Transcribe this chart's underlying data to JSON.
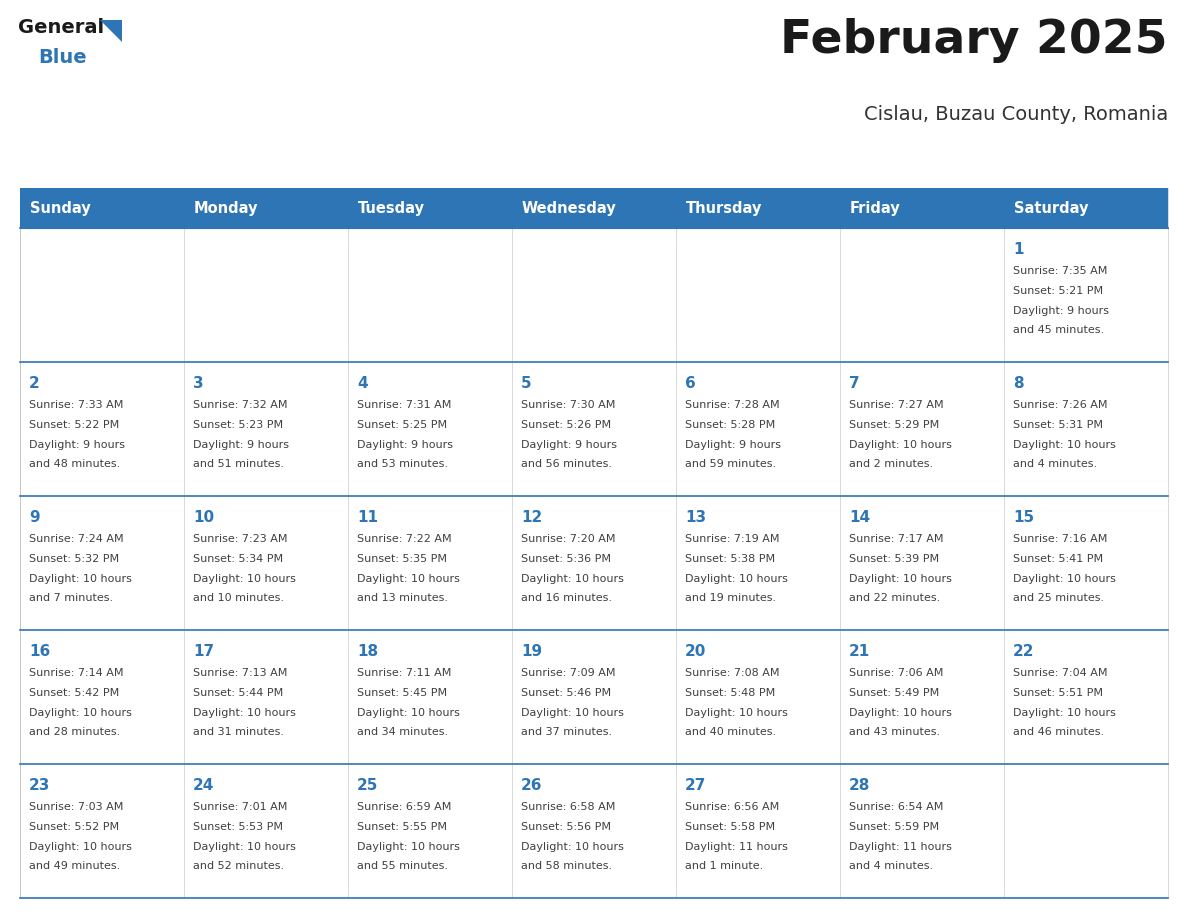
{
  "title": "February 2025",
  "subtitle": "Cislau, Buzau County, Romania",
  "header_bg": "#2E75B6",
  "header_text_color": "#FFFFFF",
  "cell_bg": "#FFFFFF",
  "day_number_color": "#2E75B6",
  "text_color": "#404040",
  "line_color": "#2E75B6",
  "days_of_week": [
    "Sunday",
    "Monday",
    "Tuesday",
    "Wednesday",
    "Thursday",
    "Friday",
    "Saturday"
  ],
  "calendar_data": [
    [
      null,
      null,
      null,
      null,
      null,
      null,
      {
        "day": "1",
        "sunrise": "7:35 AM",
        "sunset": "5:21 PM",
        "dl1": "Daylight: 9 hours",
        "dl2": "and 45 minutes."
      }
    ],
    [
      {
        "day": "2",
        "sunrise": "7:33 AM",
        "sunset": "5:22 PM",
        "dl1": "Daylight: 9 hours",
        "dl2": "and 48 minutes."
      },
      {
        "day": "3",
        "sunrise": "7:32 AM",
        "sunset": "5:23 PM",
        "dl1": "Daylight: 9 hours",
        "dl2": "and 51 minutes."
      },
      {
        "day": "4",
        "sunrise": "7:31 AM",
        "sunset": "5:25 PM",
        "dl1": "Daylight: 9 hours",
        "dl2": "and 53 minutes."
      },
      {
        "day": "5",
        "sunrise": "7:30 AM",
        "sunset": "5:26 PM",
        "dl1": "Daylight: 9 hours",
        "dl2": "and 56 minutes."
      },
      {
        "day": "6",
        "sunrise": "7:28 AM",
        "sunset": "5:28 PM",
        "dl1": "Daylight: 9 hours",
        "dl2": "and 59 minutes."
      },
      {
        "day": "7",
        "sunrise": "7:27 AM",
        "sunset": "5:29 PM",
        "dl1": "Daylight: 10 hours",
        "dl2": "and 2 minutes."
      },
      {
        "day": "8",
        "sunrise": "7:26 AM",
        "sunset": "5:31 PM",
        "dl1": "Daylight: 10 hours",
        "dl2": "and 4 minutes."
      }
    ],
    [
      {
        "day": "9",
        "sunrise": "7:24 AM",
        "sunset": "5:32 PM",
        "dl1": "Daylight: 10 hours",
        "dl2": "and 7 minutes."
      },
      {
        "day": "10",
        "sunrise": "7:23 AM",
        "sunset": "5:34 PM",
        "dl1": "Daylight: 10 hours",
        "dl2": "and 10 minutes."
      },
      {
        "day": "11",
        "sunrise": "7:22 AM",
        "sunset": "5:35 PM",
        "dl1": "Daylight: 10 hours",
        "dl2": "and 13 minutes."
      },
      {
        "day": "12",
        "sunrise": "7:20 AM",
        "sunset": "5:36 PM",
        "dl1": "Daylight: 10 hours",
        "dl2": "and 16 minutes."
      },
      {
        "day": "13",
        "sunrise": "7:19 AM",
        "sunset": "5:38 PM",
        "dl1": "Daylight: 10 hours",
        "dl2": "and 19 minutes."
      },
      {
        "day": "14",
        "sunrise": "7:17 AM",
        "sunset": "5:39 PM",
        "dl1": "Daylight: 10 hours",
        "dl2": "and 22 minutes."
      },
      {
        "day": "15",
        "sunrise": "7:16 AM",
        "sunset": "5:41 PM",
        "dl1": "Daylight: 10 hours",
        "dl2": "and 25 minutes."
      }
    ],
    [
      {
        "day": "16",
        "sunrise": "7:14 AM",
        "sunset": "5:42 PM",
        "dl1": "Daylight: 10 hours",
        "dl2": "and 28 minutes."
      },
      {
        "day": "17",
        "sunrise": "7:13 AM",
        "sunset": "5:44 PM",
        "dl1": "Daylight: 10 hours",
        "dl2": "and 31 minutes."
      },
      {
        "day": "18",
        "sunrise": "7:11 AM",
        "sunset": "5:45 PM",
        "dl1": "Daylight: 10 hours",
        "dl2": "and 34 minutes."
      },
      {
        "day": "19",
        "sunrise": "7:09 AM",
        "sunset": "5:46 PM",
        "dl1": "Daylight: 10 hours",
        "dl2": "and 37 minutes."
      },
      {
        "day": "20",
        "sunrise": "7:08 AM",
        "sunset": "5:48 PM",
        "dl1": "Daylight: 10 hours",
        "dl2": "and 40 minutes."
      },
      {
        "day": "21",
        "sunrise": "7:06 AM",
        "sunset": "5:49 PM",
        "dl1": "Daylight: 10 hours",
        "dl2": "and 43 minutes."
      },
      {
        "day": "22",
        "sunrise": "7:04 AM",
        "sunset": "5:51 PM",
        "dl1": "Daylight: 10 hours",
        "dl2": "and 46 minutes."
      }
    ],
    [
      {
        "day": "23",
        "sunrise": "7:03 AM",
        "sunset": "5:52 PM",
        "dl1": "Daylight: 10 hours",
        "dl2": "and 49 minutes."
      },
      {
        "day": "24",
        "sunrise": "7:01 AM",
        "sunset": "5:53 PM",
        "dl1": "Daylight: 10 hours",
        "dl2": "and 52 minutes."
      },
      {
        "day": "25",
        "sunrise": "6:59 AM",
        "sunset": "5:55 PM",
        "dl1": "Daylight: 10 hours",
        "dl2": "and 55 minutes."
      },
      {
        "day": "26",
        "sunrise": "6:58 AM",
        "sunset": "5:56 PM",
        "dl1": "Daylight: 10 hours",
        "dl2": "and 58 minutes."
      },
      {
        "day": "27",
        "sunrise": "6:56 AM",
        "sunset": "5:58 PM",
        "dl1": "Daylight: 11 hours",
        "dl2": "and 1 minute."
      },
      {
        "day": "28",
        "sunrise": "6:54 AM",
        "sunset": "5:59 PM",
        "dl1": "Daylight: 11 hours",
        "dl2": "and 4 minutes."
      },
      null
    ]
  ]
}
